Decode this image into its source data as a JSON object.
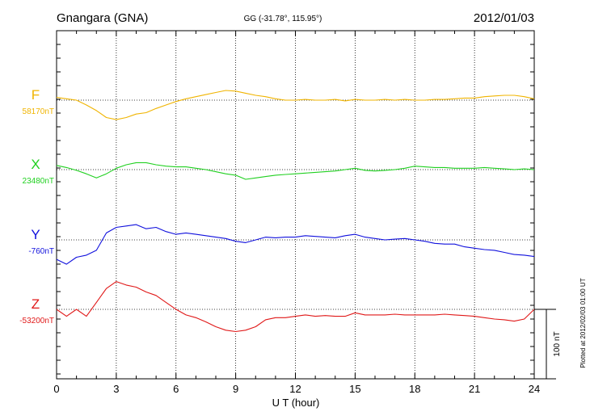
{
  "header": {
    "station": "Gnangara (GNA)",
    "code_coords": "GG (-31.78°, 115.95°)",
    "date": "2012/01/03"
  },
  "footer": {
    "x_axis_title": "U T (hour)",
    "plotted_note": "Plotted at 2012/02/03 01:00 UT",
    "scale_label": "100 nT"
  },
  "chart_data": {
    "type": "line",
    "xlabel": "U T (hour)",
    "xlim": [
      0,
      24
    ],
    "x_ticks": [
      0,
      3,
      6,
      9,
      12,
      15,
      18,
      21,
      24
    ],
    "grid": "dotted vertical at every 3 h; dotted horizontal at each component baseline",
    "scale_bar_nT": 100,
    "x": [
      0,
      0.5,
      1,
      1.5,
      2,
      2.5,
      3,
      3.5,
      4,
      4.5,
      5,
      5.5,
      6,
      6.5,
      7,
      7.5,
      8,
      8.5,
      9,
      9.5,
      10,
      10.5,
      11,
      11.5,
      12,
      12.5,
      13,
      13.5,
      14,
      14.5,
      15,
      15.5,
      16,
      16.5,
      17,
      17.5,
      18,
      18.5,
      19,
      19.5,
      20,
      20.5,
      21,
      21.5,
      22,
      22.5,
      23,
      23.5,
      24
    ],
    "series": [
      {
        "name": "F",
        "baseline_label": "58170nT",
        "baseline_nT": 58170,
        "color": "#f0b400",
        "values": [
          58174,
          58172,
          58170,
          58163,
          58155,
          58145,
          58142,
          58145,
          58150,
          58152,
          58158,
          58163,
          58168,
          58172,
          58175,
          58178,
          58181,
          58184,
          58183,
          58180,
          58177,
          58175,
          58172,
          58170,
          58170,
          58171,
          58170,
          58170,
          58171,
          58169,
          58171,
          58170,
          58170,
          58171,
          58170,
          58171,
          58170,
          58170,
          58171,
          58171,
          58172,
          58173,
          58173,
          58175,
          58176,
          58177,
          58177,
          58175,
          58172
        ]
      },
      {
        "name": "X",
        "baseline_label": "23480nT",
        "baseline_nT": 23480,
        "color": "#20d020",
        "values": [
          23486,
          23483,
          23479,
          23474,
          23468,
          23474,
          23482,
          23487,
          23490,
          23490,
          23487,
          23485,
          23484,
          23484,
          23482,
          23480,
          23477,
          23474,
          23472,
          23466,
          23468,
          23470,
          23472,
          23473,
          23474,
          23475,
          23476,
          23477,
          23478,
          23480,
          23482,
          23479,
          23478,
          23479,
          23480,
          23482,
          23485,
          23484,
          23483,
          23483,
          23482,
          23482,
          23482,
          23483,
          23482,
          23481,
          23480,
          23481,
          23480
        ]
      },
      {
        "name": "Y",
        "baseline_label": "-760nT",
        "baseline_nT": -760,
        "color": "#1010dd",
        "values": [
          -788,
          -795,
          -785,
          -782,
          -775,
          -750,
          -742,
          -740,
          -738,
          -744,
          -742,
          -748,
          -752,
          -750,
          -752,
          -754,
          -756,
          -758,
          -762,
          -764,
          -760,
          -756,
          -757,
          -756,
          -756,
          -754,
          -755,
          -756,
          -757,
          -754,
          -752,
          -756,
          -758,
          -760,
          -759,
          -758,
          -760,
          -762,
          -765,
          -766,
          -766,
          -770,
          -772,
          -774,
          -775,
          -778,
          -781,
          -782,
          -784
        ]
      },
      {
        "name": "Z",
        "baseline_label": "-53200nT",
        "baseline_nT": -53200,
        "color": "#e01818",
        "values": [
          -53200,
          -53210,
          -53200,
          -53210,
          -53190,
          -53170,
          -53160,
          -53165,
          -53168,
          -53175,
          -53180,
          -53190,
          -53200,
          -53208,
          -53212,
          -53218,
          -53225,
          -53230,
          -53232,
          -53230,
          -53225,
          -53215,
          -53212,
          -53212,
          -53210,
          -53208,
          -53210,
          -53209,
          -53210,
          -53210,
          -53205,
          -53208,
          -53208,
          -53208,
          -53207,
          -53208,
          -53208,
          -53208,
          -53208,
          -53207,
          -53208,
          -53209,
          -53210,
          -53212,
          -53214,
          -53215,
          -53217,
          -53214,
          -53200
        ]
      }
    ]
  }
}
